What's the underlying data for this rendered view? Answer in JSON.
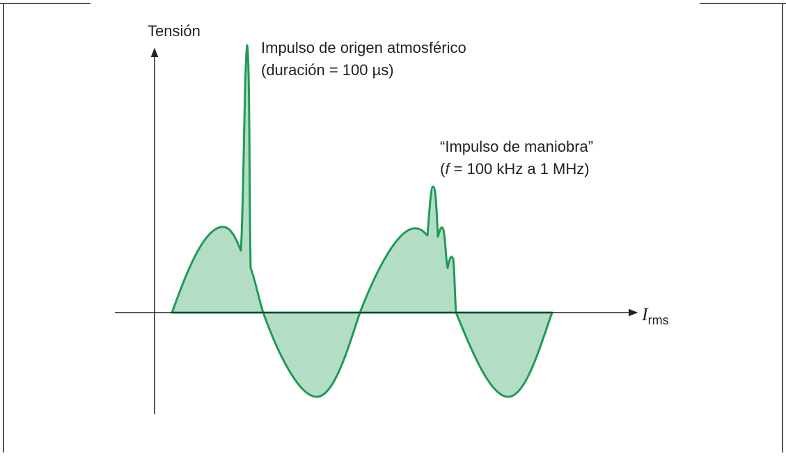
{
  "axes": {
    "y_label": "Tensión",
    "x_label": {
      "main": "I",
      "sub": "rms"
    }
  },
  "annotations": [
    {
      "line1": "Impulso de origen atmosférico",
      "line2": "(duración = 100 µs)"
    },
    {
      "line1": "“Impulso de maniobra”",
      "line2": {
        "open": "(",
        "symbol": "f",
        "rest": " = 100 kHz a 1 MHz)"
      }
    }
  ]
}
